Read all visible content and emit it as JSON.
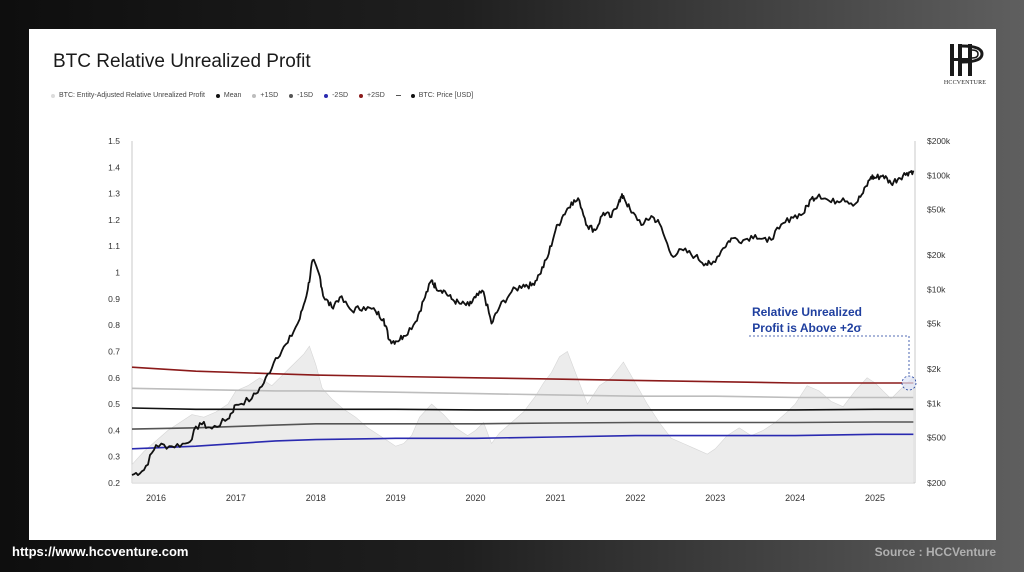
{
  "title": "BTC Relative Unrealized Profit",
  "legend": [
    {
      "label": "BTC: Entity-Adjusted Relative Unrealized Profit",
      "color": "#dcdcdc"
    },
    {
      "label": "Mean",
      "color": "#111111"
    },
    {
      "label": "+1SD",
      "color": "#bdbdbd"
    },
    {
      "label": "-1SD",
      "color": "#555555"
    },
    {
      "label": "-2SD",
      "color": "#2a2ab0"
    },
    {
      "label": "+2SD",
      "color": "#8b1a1a"
    },
    {
      "label": "BTC: Price [USD]",
      "color": "#111111",
      "dash": true
    }
  ],
  "logo": {
    "text": "HCCVENTURE",
    "icon": "hccventure-logo-icon"
  },
  "annotation": {
    "line1": "Relative Unrealized",
    "line2": "Profit is Above +2σ"
  },
  "footer": {
    "url": "https://www.hccventure.com",
    "source": "Source : HCCVenture"
  },
  "chart_data": {
    "type": "line",
    "x_ticks": [
      "2016",
      "2017",
      "2018",
      "2019",
      "2020",
      "2021",
      "2022",
      "2023",
      "2024",
      "2025"
    ],
    "y_left_ticks": [
      "0.2",
      "0.3",
      "0.4",
      "0.5",
      "0.6",
      "0.7",
      "0.8",
      "0.9",
      "1",
      "1.1",
      "1.2",
      "1.3",
      "1.4",
      "1.5"
    ],
    "y_left_range": [
      0.2,
      1.5
    ],
    "y_right_ticks": [
      {
        "label": "$200",
        "value": 200
      },
      {
        "label": "$500",
        "value": 500
      },
      {
        "label": "$1k",
        "value": 1000
      },
      {
        "label": "$2k",
        "value": 2000
      },
      {
        "label": "$5k",
        "value": 5000
      },
      {
        "label": "$10k",
        "value": 10000
      },
      {
        "label": "$20k",
        "value": 20000
      },
      {
        "label": "$50k",
        "value": 50000
      },
      {
        "label": "$100k",
        "value": 100000
      },
      {
        "label": "$200k",
        "value": 200000
      }
    ],
    "y_right_range": [
      200,
      200000
    ],
    "y_right_scale": "log",
    "x_range": [
      2015.7,
      2025.5
    ],
    "series": [
      {
        "name": "BTC: Entity-Adjusted Relative Unrealized Profit",
        "kind": "area",
        "color": "#e4e4e4",
        "x": [
          2015.7,
          2015.85,
          2016.0,
          2016.15,
          2016.3,
          2016.45,
          2016.6,
          2016.75,
          2016.9,
          2017.0,
          2017.15,
          2017.3,
          2017.45,
          2017.55,
          2017.65,
          2017.75,
          2017.85,
          2017.92,
          2018.0,
          2018.08,
          2018.2,
          2018.35,
          2018.5,
          2018.65,
          2018.8,
          2018.9,
          2019.0,
          2019.1,
          2019.2,
          2019.3,
          2019.45,
          2019.6,
          2019.75,
          2019.9,
          2020.0,
          2020.1,
          2020.2,
          2020.3,
          2020.45,
          2020.6,
          2020.75,
          2020.85,
          2020.95,
          2021.05,
          2021.15,
          2021.25,
          2021.4,
          2021.55,
          2021.7,
          2021.85,
          2022.0,
          2022.15,
          2022.3,
          2022.45,
          2022.6,
          2022.75,
          2022.9,
          2023.0,
          2023.15,
          2023.3,
          2023.45,
          2023.6,
          2023.75,
          2023.9,
          2024.0,
          2024.15,
          2024.3,
          2024.45,
          2024.6,
          2024.75,
          2024.9,
          2025.0,
          2025.1,
          2025.2,
          2025.3,
          2025.4,
          2025.48
        ],
        "values": [
          0.27,
          0.32,
          0.36,
          0.4,
          0.43,
          0.46,
          0.45,
          0.47,
          0.5,
          0.55,
          0.57,
          0.6,
          0.57,
          0.6,
          0.63,
          0.66,
          0.69,
          0.72,
          0.65,
          0.56,
          0.52,
          0.48,
          0.45,
          0.41,
          0.38,
          0.36,
          0.34,
          0.35,
          0.38,
          0.45,
          0.5,
          0.46,
          0.41,
          0.38,
          0.4,
          0.43,
          0.35,
          0.39,
          0.43,
          0.47,
          0.53,
          0.58,
          0.62,
          0.68,
          0.7,
          0.62,
          0.5,
          0.57,
          0.6,
          0.66,
          0.58,
          0.5,
          0.43,
          0.37,
          0.35,
          0.33,
          0.31,
          0.33,
          0.38,
          0.41,
          0.38,
          0.4,
          0.43,
          0.47,
          0.5,
          0.57,
          0.55,
          0.51,
          0.49,
          0.55,
          0.6,
          0.58,
          0.55,
          0.52,
          0.55,
          0.58,
          0.6
        ]
      },
      {
        "name": "+2SD",
        "kind": "line",
        "color": "#8b1a1a",
        "x": [
          2015.7,
          2016.5,
          2017.5,
          2018.0,
          2019.0,
          2020.0,
          2021.0,
          2022.0,
          2023.0,
          2024.0,
          2025.0,
          2025.48
        ],
        "values": [
          0.64,
          0.625,
          0.615,
          0.61,
          0.605,
          0.6,
          0.595,
          0.59,
          0.585,
          0.58,
          0.58,
          0.58
        ]
      },
      {
        "name": "+1SD",
        "kind": "line",
        "color": "#bdbdbd",
        "x": [
          2015.7,
          2016.5,
          2017.5,
          2018.0,
          2019.0,
          2020.0,
          2021.0,
          2022.0,
          2023.0,
          2024.0,
          2025.0,
          2025.48
        ],
        "values": [
          0.56,
          0.555,
          0.55,
          0.55,
          0.545,
          0.54,
          0.535,
          0.53,
          0.53,
          0.525,
          0.525,
          0.525
        ]
      },
      {
        "name": "Mean",
        "kind": "line",
        "color": "#111111",
        "x": [
          2015.7,
          2016.5,
          2017.5,
          2018.0,
          2019.0,
          2020.0,
          2021.0,
          2022.0,
          2023.0,
          2024.0,
          2025.0,
          2025.48
        ],
        "values": [
          0.485,
          0.48,
          0.48,
          0.48,
          0.48,
          0.478,
          0.478,
          0.478,
          0.478,
          0.478,
          0.48,
          0.48
        ]
      },
      {
        "name": "-1SD",
        "kind": "line",
        "color": "#555555",
        "x": [
          2015.7,
          2016.5,
          2017.5,
          2018.0,
          2019.0,
          2020.0,
          2021.0,
          2022.0,
          2023.0,
          2024.0,
          2025.0,
          2025.48
        ],
        "values": [
          0.405,
          0.41,
          0.42,
          0.425,
          0.425,
          0.425,
          0.428,
          0.43,
          0.43,
          0.43,
          0.432,
          0.432
        ]
      },
      {
        "name": "-2SD",
        "kind": "line",
        "color": "#2a2ab0",
        "x": [
          2015.7,
          2016.5,
          2017.5,
          2018.0,
          2019.0,
          2020.0,
          2021.0,
          2022.0,
          2023.0,
          2024.0,
          2025.0,
          2025.48
        ],
        "values": [
          0.33,
          0.34,
          0.36,
          0.365,
          0.37,
          0.37,
          0.375,
          0.38,
          0.38,
          0.38,
          0.385,
          0.385
        ]
      },
      {
        "name": "BTC: Price [USD]",
        "kind": "line",
        "axis": "right",
        "color": "#111111",
        "x": [
          2015.7,
          2015.85,
          2016.0,
          2016.2,
          2016.4,
          2016.55,
          2016.7,
          2016.9,
          2017.0,
          2017.2,
          2017.35,
          2017.5,
          2017.65,
          2017.8,
          2017.9,
          2017.96,
          2018.05,
          2018.1,
          2018.2,
          2018.3,
          2018.45,
          2018.6,
          2018.75,
          2018.85,
          2018.92,
          2019.0,
          2019.1,
          2019.25,
          2019.35,
          2019.45,
          2019.5,
          2019.6,
          2019.7,
          2019.8,
          2019.92,
          2020.0,
          2020.1,
          2020.2,
          2020.3,
          2020.45,
          2020.6,
          2020.7,
          2020.8,
          2020.9,
          2021.0,
          2021.1,
          2021.2,
          2021.3,
          2021.4,
          2021.5,
          2021.6,
          2021.7,
          2021.8,
          2021.85,
          2021.95,
          2022.1,
          2022.2,
          2022.3,
          2022.45,
          2022.6,
          2022.75,
          2022.88,
          2022.95,
          2023.1,
          2023.2,
          2023.35,
          2023.5,
          2023.65,
          2023.8,
          2023.95,
          2024.1,
          2024.2,
          2024.3,
          2024.45,
          2024.6,
          2024.75,
          2024.85,
          2024.95,
          2025.0,
          2025.1,
          2025.2,
          2025.3,
          2025.4,
          2025.48
        ],
        "values": [
          235,
          260,
          430,
          420,
          450,
          670,
          600,
          730,
          970,
          1100,
          1500,
          2500,
          3400,
          5500,
          10000,
          18000,
          13000,
          8500,
          7000,
          8500,
          6500,
          7000,
          6400,
          5500,
          3600,
          3500,
          3900,
          5200,
          8000,
          12000,
          10500,
          9800,
          8200,
          7500,
          7200,
          8500,
          9500,
          5000,
          7000,
          9500,
          11000,
          10800,
          13500,
          19000,
          33000,
          45000,
          58000,
          60000,
          36000,
          33000,
          47000,
          43000,
          61000,
          66000,
          47000,
          37000,
          44000,
          38000,
          20000,
          22000,
          19500,
          16800,
          16500,
          23000,
          28000,
          27000,
          30000,
          26000,
          34000,
          43000,
          46000,
          62000,
          68000,
          58000,
          63000,
          56000,
          70000,
          97000,
          95000,
          100000,
          85000,
          95000,
          105000,
          110000
        ]
      }
    ]
  }
}
